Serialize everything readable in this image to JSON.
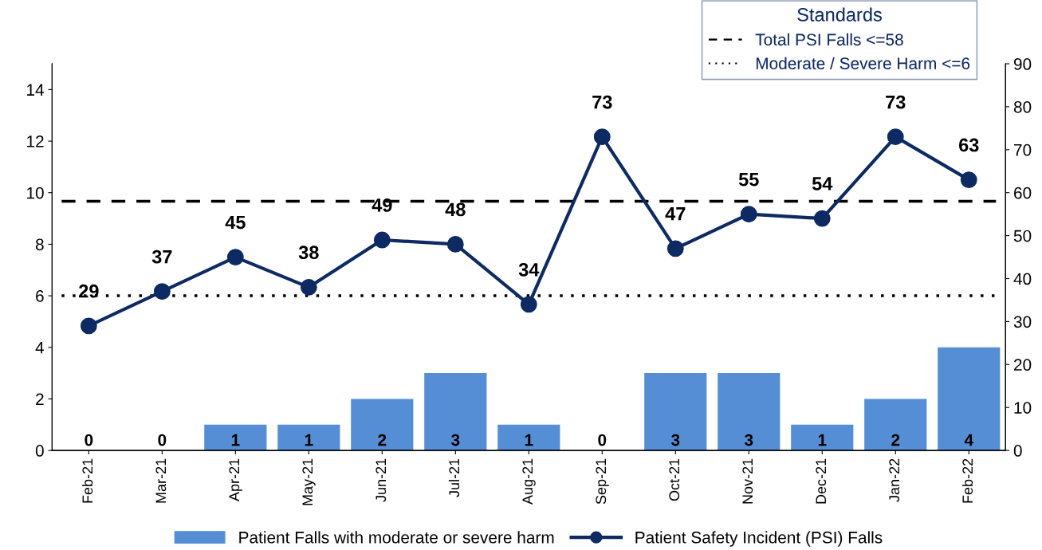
{
  "chart_data": {
    "type": "bar",
    "categories": [
      "Feb-21",
      "Mar-21",
      "Apr-21",
      "May-21",
      "Jun-21",
      "Jul-21",
      "Aug-21",
      "Sep-21",
      "Oct-21",
      "Nov-21",
      "Dec-21",
      "Jan-22",
      "Feb-22"
    ],
    "series": [
      {
        "name": "Patient Falls with moderate or severe harm",
        "color": "#558ed5",
        "values": [
          0,
          0,
          1,
          1,
          2,
          3,
          1,
          0,
          3,
          3,
          1,
          2,
          4
        ]
      },
      {
        "name": "Patient Safety Incident (PSI) Falls",
        "type": "line",
        "axis": "y2",
        "color": "#0d2a63",
        "marker": "circle",
        "values": [
          29,
          37,
          45,
          38,
          49,
          48,
          34,
          73,
          47,
          55,
          54,
          73,
          63
        ]
      }
    ],
    "ylim": [
      0,
      15
    ],
    "yticks": [
      0,
      2,
      4,
      6,
      8,
      10,
      12,
      14
    ],
    "y2lim": [
      0,
      90
    ],
    "y2ticks": [
      0,
      10,
      20,
      30,
      40,
      50,
      60,
      70,
      80,
      90
    ],
    "ref_lines": [
      {
        "axis": "y2",
        "value": 58,
        "label": "Total PSI Falls <=58",
        "color": "#000000",
        "line_style": "dashed"
      },
      {
        "axis": "y",
        "value": 6,
        "label": "Moderate / Severe Harm <=6",
        "color": "#000000",
        "line_style": "dotted"
      }
    ],
    "annotations": [
      "Standards"
    ],
    "data_labels": true,
    "legend": "bottom",
    "grid": false
  }
}
